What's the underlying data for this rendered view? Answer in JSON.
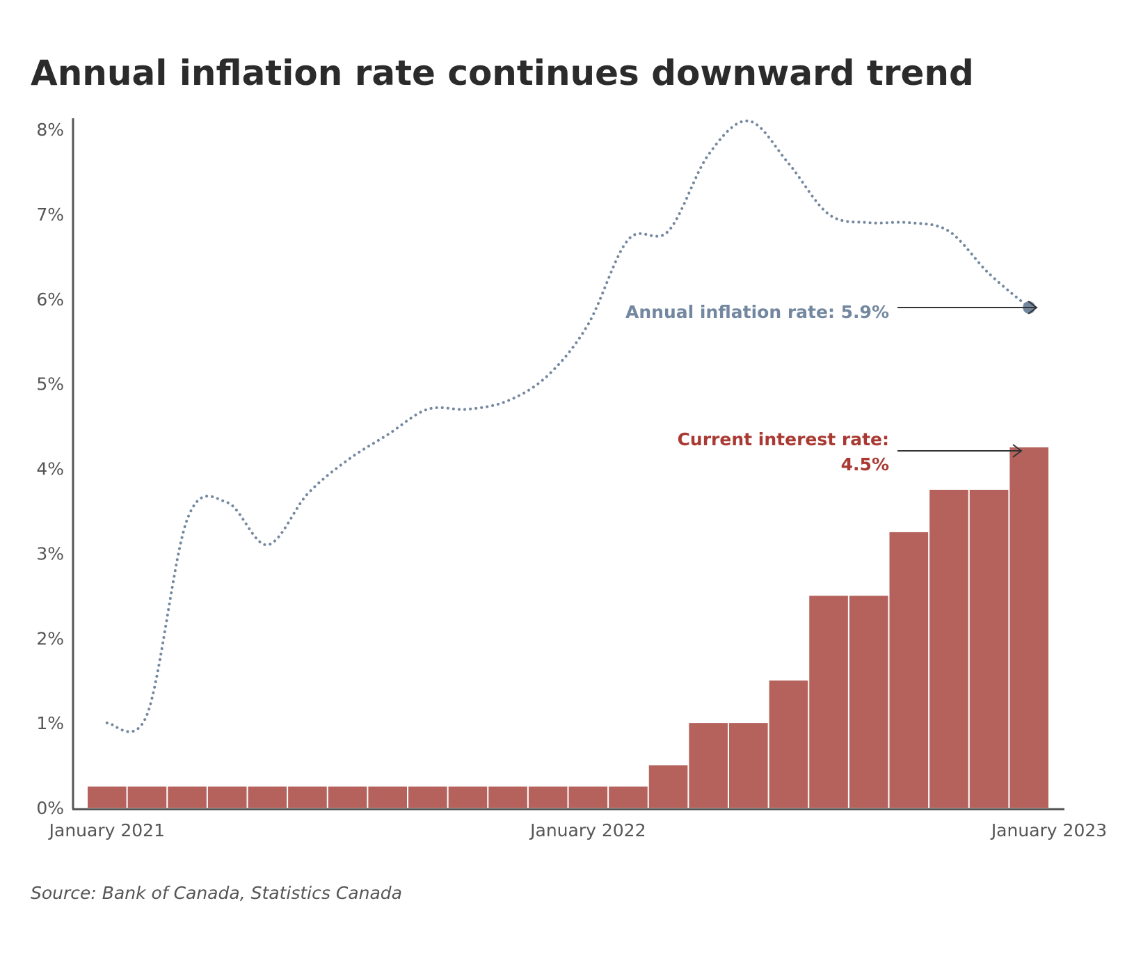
{
  "chart_data": {
    "type": "bar",
    "title": "Annual inflation rate continues downward trend",
    "source": "Source: Bank of Canada, Statistics Canada",
    "y_ticks": [
      "0%",
      "1%",
      "2%",
      "3%",
      "4%",
      "5%",
      "6%",
      "7%",
      "8%"
    ],
    "ylim": [
      0,
      8
    ],
    "x_ticks": [
      "January 2021",
      "January 2022",
      "January 2023"
    ],
    "grid": false,
    "series": [
      {
        "kind": "bar",
        "color": "#b5625c",
        "values": [
          0.25,
          0.25,
          0.25,
          0.25,
          0.25,
          0.25,
          0.25,
          0.25,
          0.25,
          0.25,
          0.25,
          0.25,
          0.25,
          0.25,
          0.5,
          1.0,
          1.0,
          1.5,
          2.5,
          2.5,
          3.25,
          3.75,
          3.75,
          4.25
        ]
      },
      {
        "kind": "line",
        "style": "dotted",
        "color": "#7388a0",
        "values": [
          1.0,
          1.1,
          3.4,
          3.6,
          3.1,
          3.7,
          4.1,
          4.4,
          4.7,
          4.7,
          4.8,
          5.1,
          5.7,
          6.7,
          6.8,
          7.7,
          8.1,
          7.6,
          7.0,
          6.9,
          6.9,
          6.8,
          6.3,
          5.9
        ]
      }
    ],
    "annotations": {
      "inflation": {
        "text": "Annual inflation rate: 5.9%",
        "color": "#7388a0"
      },
      "interest": {
        "line1": "Current interest rate:",
        "line2": "4.5%",
        "color": "#a93a33"
      }
    }
  }
}
